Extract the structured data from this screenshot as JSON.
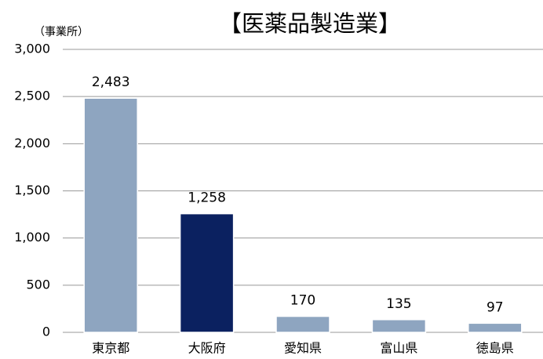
{
  "chart_data": {
    "type": "bar",
    "title": "【医薬品製造業】",
    "y_axis_label": "（事業所）",
    "categories": [
      "東京都",
      "大阪府",
      "愛知県",
      "富山県",
      "徳島県"
    ],
    "values": [
      2483,
      1258,
      170,
      135,
      97
    ],
    "value_labels": [
      "2,483",
      "1,258",
      "170",
      "135",
      "97"
    ],
    "colors": [
      "#8ea5c0",
      "#0b2160",
      "#8ea5c0",
      "#8ea5c0",
      "#8ea5c0"
    ],
    "ylim": [
      0,
      3000
    ],
    "yticks": [
      0,
      500,
      {
        "value": 1000,
        "label": "1,000"
      },
      {
        "value": 1500,
        "label": "1,500"
      },
      {
        "value": 2000,
        "label": "2,000"
      },
      {
        "value": 2500,
        "label": "2,500"
      },
      {
        "value": 3000,
        "label": "3,000"
      }
    ],
    "grid": true
  }
}
